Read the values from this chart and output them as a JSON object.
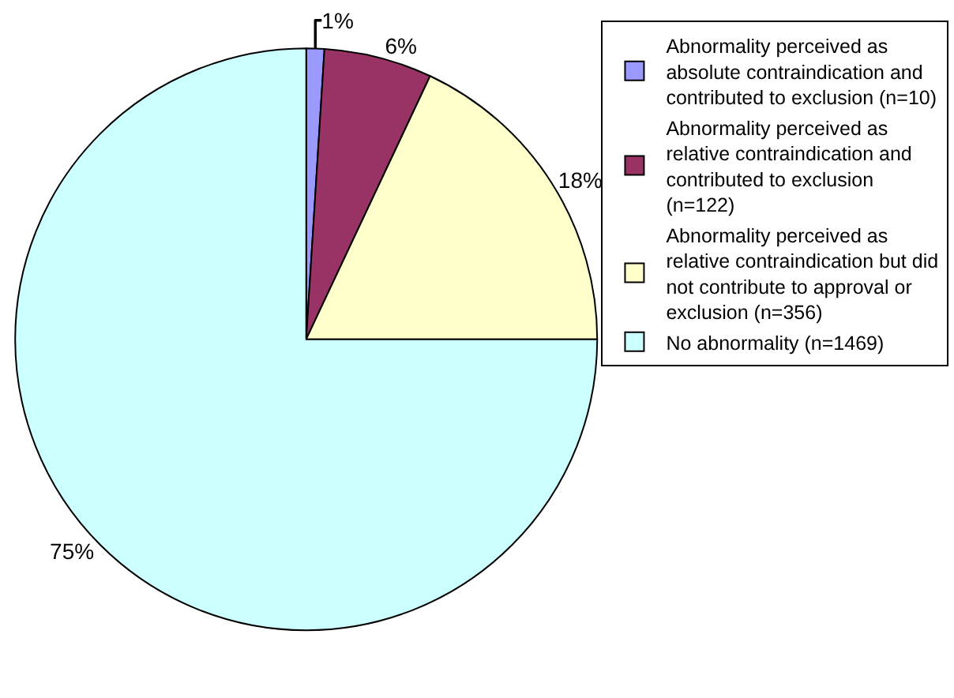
{
  "chart_data": {
    "type": "pie",
    "categories": [
      "Abnormality perceived as absolute contraindication and contributed to exclusion (n=10)",
      "Abnormality perceived as relative contraindication and contributed to exclusion (n=122)",
      "Abnormality perceived as relative contraindication but did not contribute to approval or exclusion (n=356)",
      "No abnormality (n=1469)"
    ],
    "values": [
      1,
      6,
      18,
      75
    ],
    "value_labels": [
      "1%",
      "6%",
      "18%",
      "75%"
    ],
    "colors": [
      "#9999ff",
      "#993366",
      "#ffffcc",
      "#ccffff"
    ],
    "legend": "right"
  }
}
